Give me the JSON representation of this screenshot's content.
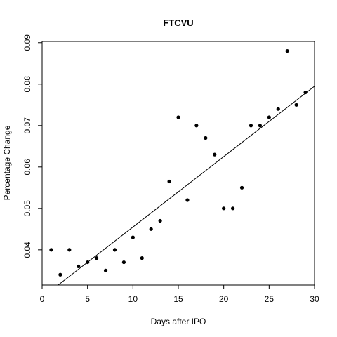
{
  "chart_data": {
    "type": "scatter",
    "title": "FTCVU",
    "xlabel": "Days after IPO",
    "ylabel": "Percentage Change",
    "xlim": [
      0,
      30
    ],
    "ylim": [
      0.0315,
      0.0903
    ],
    "xticks": [
      "0",
      "5",
      "10",
      "15",
      "20",
      "25",
      "30"
    ],
    "yticks": [
      "0.04",
      "0.05",
      "0.06",
      "0.07",
      "0.08",
      "0.09"
    ],
    "grid": false,
    "legend": "none",
    "series": [
      {
        "x": [
          1,
          2,
          3,
          4,
          5,
          6,
          7,
          8,
          9,
          10,
          11,
          12,
          13,
          14,
          15,
          16,
          17,
          18,
          19,
          20,
          21,
          22,
          23,
          24,
          25,
          26,
          27,
          28,
          29
        ],
        "values": [
          0.04,
          0.034,
          0.04,
          0.036,
          0.037,
          0.038,
          0.035,
          0.04,
          0.037,
          0.043,
          0.038,
          0.045,
          0.047,
          0.0565,
          0.072,
          0.052,
          0.07,
          0.067,
          0.063,
          0.05,
          0.05,
          0.055,
          0.07,
          0.07,
          0.072,
          0.074,
          0.088,
          0.075,
          0.078
        ]
      }
    ],
    "trend_line": {
      "intercept": 0.0285,
      "slope": 0.0017
    },
    "colors": {
      "points": "#000000",
      "line": "#000000",
      "axes": "#000000"
    }
  }
}
